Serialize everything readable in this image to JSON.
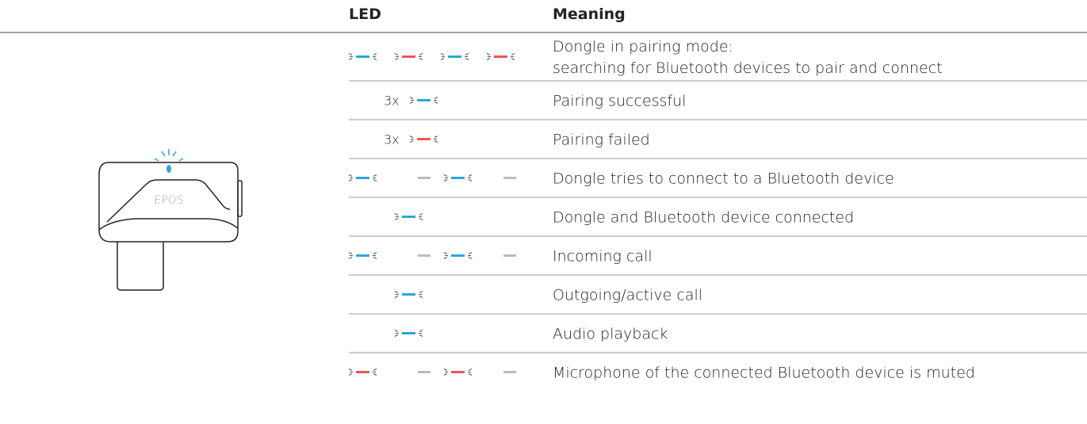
{
  "device": {
    "logo": "EPOS"
  },
  "table": {
    "header": {
      "led": "LED",
      "meaning": "Meaning"
    },
    "rows": [
      {
        "meaning": [
          "Dongle in pairing mode:",
          "searching for Bluetooth devices to pair and connect"
        ]
      },
      {
        "count": "3x",
        "meaning": [
          "Pairing successful"
        ]
      },
      {
        "count": "3x",
        "meaning": [
          "Pairing failed"
        ]
      },
      {
        "meaning": [
          "Dongle tries to connect to a Bluetooth device"
        ]
      },
      {
        "meaning": [
          "Dongle and Bluetooth device connected"
        ]
      },
      {
        "meaning": [
          "Incoming call"
        ]
      },
      {
        "meaning": [
          "Outgoing/active call"
        ]
      },
      {
        "meaning": [
          "Audio playback"
        ]
      },
      {
        "meaning": [
          "Microphone of the connected Bluetooth device is muted"
        ]
      }
    ]
  }
}
